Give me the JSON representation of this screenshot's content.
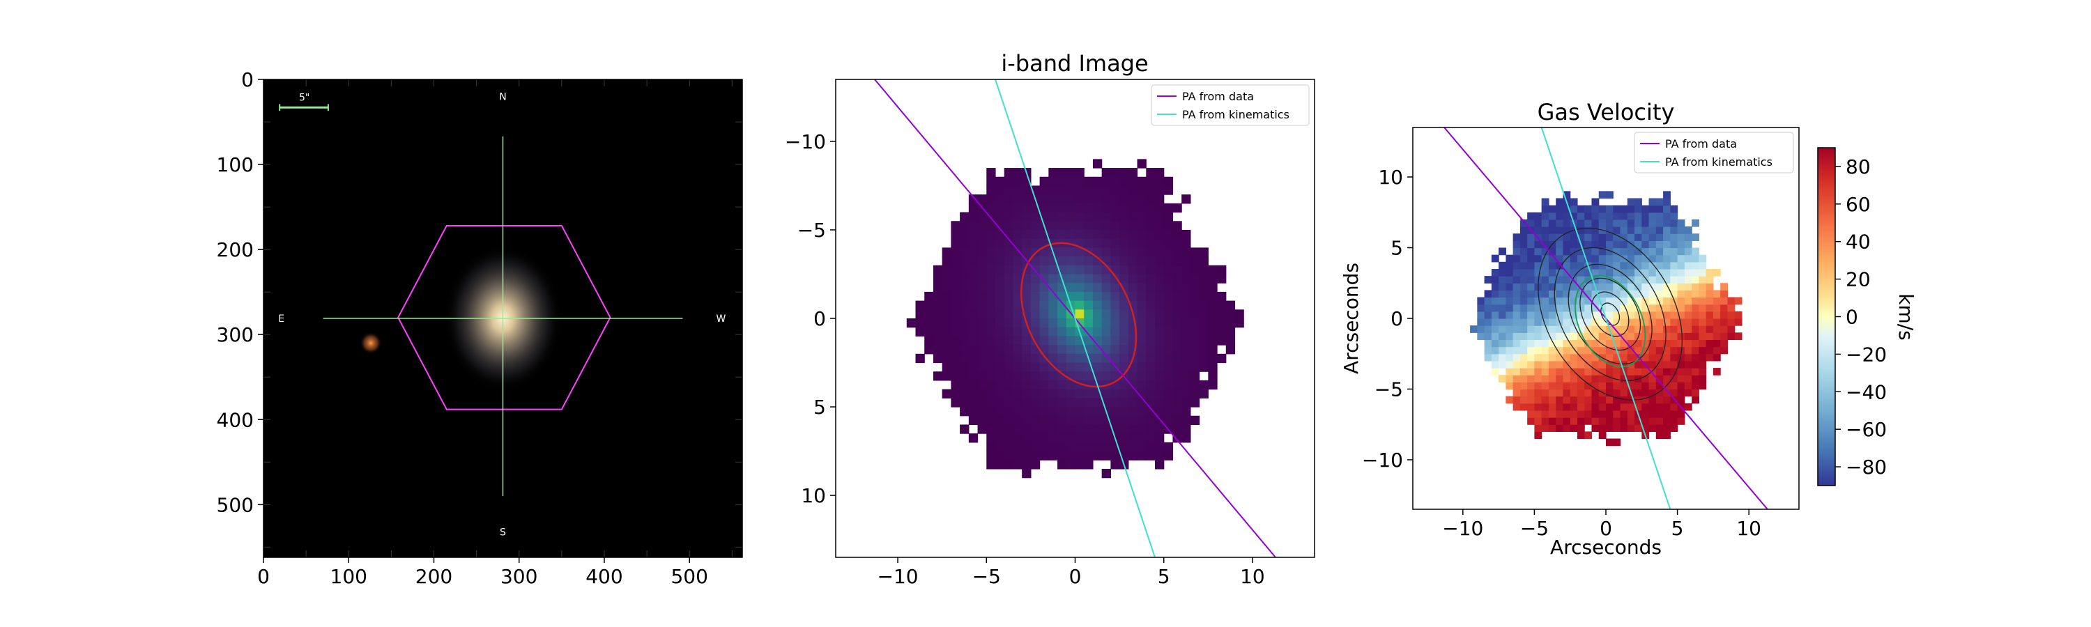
{
  "chart_data": [
    {
      "type": "image",
      "title": "",
      "xlim": [
        0,
        562
      ],
      "ylim": [
        562,
        0
      ],
      "xticks": [
        "0",
        "100",
        "200",
        "300",
        "400",
        "500"
      ],
      "yticks": [
        "0",
        "100",
        "200",
        "300",
        "400",
        "500"
      ],
      "scale_bar": "5\"",
      "compass": {
        "north": "N",
        "south": "S",
        "east": "E",
        "west": "W"
      },
      "hexagon": [
        [
          215,
          172
        ],
        [
          350,
          172
        ],
        [
          407,
          280
        ],
        [
          350,
          388
        ],
        [
          215,
          388
        ],
        [
          158,
          280
        ]
      ],
      "crosshair_center": [
        281,
        281
      ],
      "colors": {
        "hexagon": "#ff40ff",
        "crosshair": "#90ee90",
        "background": "#000000"
      }
    },
    {
      "type": "heatmap",
      "title": "i-band Image",
      "xlim": [
        -13.5,
        13.5
      ],
      "ylim": [
        13.5,
        -13.5
      ],
      "xticks": [
        "−10",
        "−5",
        "0",
        "5",
        "10"
      ],
      "yticks": [
        "−10",
        "−5",
        "0",
        "5",
        "10"
      ],
      "colormap": "viridis",
      "series": [
        {
          "name": "PA from data",
          "color": "#9400d3",
          "points": [
            [
              -11.3,
              -13.5
            ],
            [
              11.3,
              13.5
            ]
          ]
        },
        {
          "name": "PA from kinematics",
          "color": "#40e0d0",
          "points": [
            [
              -4.5,
              -13.5
            ],
            [
              4.5,
              13.5
            ]
          ]
        }
      ],
      "ellipse": {
        "center": [
          0.2,
          -0.2
        ],
        "semi_major": 4.3,
        "semi_minor": 2.9,
        "angle_deg": 63,
        "color": "#cc2222"
      },
      "legend": "top-right"
    },
    {
      "type": "heatmap",
      "title": "Gas Velocity",
      "xlabel": "Arcseconds",
      "ylabel": "Arcseconds",
      "xlim": [
        -13.5,
        13.5
      ],
      "ylim": [
        -13.5,
        13.5
      ],
      "xticks": [
        "−10",
        "−5",
        "0",
        "5",
        "10"
      ],
      "yticks": [
        "−10",
        "−5",
        "0",
        "5",
        "10"
      ],
      "colormap": "RdYlBu_r",
      "series": [
        {
          "name": "PA from data",
          "color": "#9400d3",
          "points": [
            [
              -11.3,
              13.5
            ],
            [
              11.3,
              -13.5
            ]
          ]
        },
        {
          "name": "PA from kinematics",
          "color": "#40e0d0",
          "points": [
            [
              -4.5,
              13.5
            ],
            [
              4.5,
              -13.5
            ]
          ]
        }
      ],
      "legend": "top-right",
      "colorbar": {
        "label": "km/s",
        "range": [
          -90,
          90
        ],
        "ticks": [
          "80",
          "60",
          "40",
          "20",
          "0",
          "−20",
          "−40",
          "−60",
          "−80"
        ]
      }
    }
  ]
}
